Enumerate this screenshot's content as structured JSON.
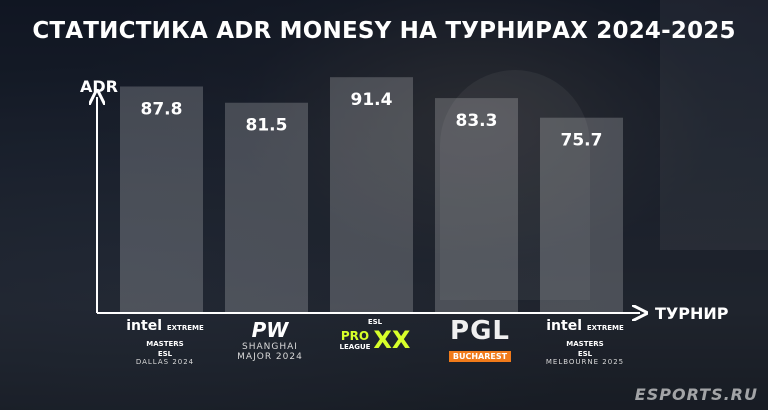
{
  "chart_data": {
    "type": "bar",
    "title": "СТАТИСТИКА ADR  MONESY НА ТУРНИРАХ 2024-2025",
    "ylabel": "ADR",
    "xlabel": "ТУРНИР",
    "categories": [
      "Intel Extreme Masters Dallas 2024",
      "PW Shanghai Major 2024",
      "ESL Pro League XX",
      "PGL Bucharest 2025",
      "Intel Extreme Masters Melbourne 2025"
    ],
    "values": [
      87.8,
      81.5,
      91.4,
      83.3,
      75.7
    ],
    "value_labels": [
      "87.8",
      "81.5",
      "91.4",
      "83.3",
      "75.7"
    ],
    "ylim": [
      0,
      100
    ],
    "grid": false,
    "bar_color": "#ffffff"
  },
  "logos": [
    {
      "l1": "intel",
      "l2": "EXTREME MASTERS",
      "l3": "ESL",
      "l4": "DALLAS 2024"
    },
    {
      "l1": "PW",
      "l2": "SHANGHAI",
      "l3": "MAJOR 2024"
    },
    {
      "l1": "ESL",
      "l2": "PRO",
      "l3": "LEAGUE",
      "l4": "XX"
    },
    {
      "l1": "PGL",
      "l2": "BUCHAREST"
    },
    {
      "l1": "intel",
      "l2": "EXTREME MASTERS",
      "l3": "ESL",
      "l4": "MELBOURNE 2025"
    }
  ],
  "watermark": "ESPORTS.RU"
}
